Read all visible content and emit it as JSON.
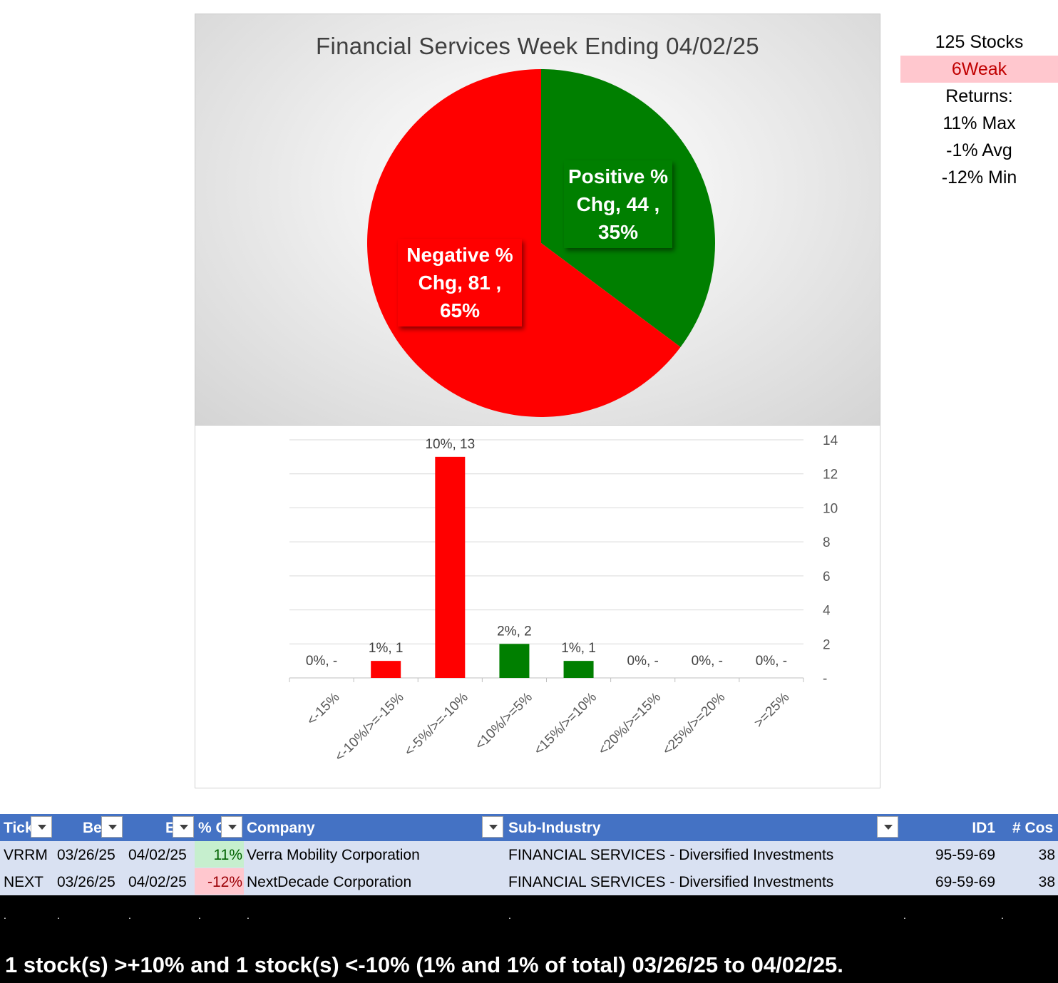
{
  "pie_chart": {
    "title": "Financial Services Week Ending 04/02/25",
    "slices": [
      {
        "label_line1": "Positive %",
        "label_line2": "Chg,  44 ,",
        "label_line3": "35%",
        "value": 44,
        "percent": 35,
        "color": "#007f00"
      },
      {
        "label_line1": "Negative %",
        "label_line2": "Chg,  81 ,",
        "label_line3": "65%",
        "value": 81,
        "percent": 65,
        "color": "#ff0000"
      }
    ]
  },
  "chart_data": [
    {
      "type": "pie",
      "title": "Financial Services Week Ending 04/02/25",
      "categories": [
        "Positive % Chg",
        "Negative % Chg"
      ],
      "values": [
        44,
        81
      ],
      "percents": [
        35,
        65
      ],
      "colors": [
        "#007f00",
        "#ff0000"
      ]
    },
    {
      "type": "bar",
      "categories": [
        "<-15%",
        "<-10%/>=-15%",
        "<-5%/>=-10%",
        "<10%/>=5%",
        "<15%/>=10%",
        "<20%/>=15%",
        "<25%/>=20%",
        ">=25%"
      ],
      "values": [
        0,
        1,
        13,
        2,
        1,
        0,
        0,
        0
      ],
      "data_labels": [
        "0%,  -",
        "1%,  1",
        "10%,  13",
        "2%,  2",
        "1%,  1",
        "0%,  -",
        "0%,  -",
        "0%,  -"
      ],
      "bar_colors": [
        "#ff0000",
        "#ff0000",
        "#ff0000",
        "#007f00",
        "#007f00",
        "#007f00",
        "#007f00",
        "#007f00"
      ],
      "y_ticks": [
        "-",
        "2",
        "4",
        "6",
        "8",
        "10",
        "12",
        "14"
      ],
      "ylim": [
        0,
        14
      ],
      "y_axis_side": "right",
      "grid": true
    }
  ],
  "side_stats": {
    "stocks": "125 Stocks",
    "weak": "6Weak",
    "returns_label": "Returns:",
    "max": "11% Max",
    "avg": "-1% Avg",
    "min": "-12% Min"
  },
  "table": {
    "headers": [
      "Tick",
      "Be",
      "E",
      "% C",
      "Company",
      "Sub-Industry",
      "ID1",
      "# Cos"
    ],
    "rows": [
      {
        "ticker": "VRRM",
        "begin": "03/26/25",
        "end": "04/02/25",
        "pct": "11%",
        "company": "Verra Mobility Corporation",
        "sub_industry": "FINANCIAL SERVICES - Diversified Investments",
        "id1": "95-59-69",
        "cos": "38"
      },
      {
        "ticker": "NEXT",
        "begin": "03/26/25",
        "end": "04/02/25",
        "pct": "-12%",
        "company": "NextDecade Corporation",
        "sub_industry": "FINANCIAL SERVICES - Diversified Investments",
        "id1": "69-59-69",
        "cos": "38"
      }
    ],
    "colors": {
      "header": "#4472c4",
      "row": "#d9e1f2",
      "positive_fill": "#c6efce",
      "negative_fill": "#ffc7ce"
    }
  },
  "footer": {
    "dot": ".",
    "summary": "1 stock(s) >+10% and 1 stock(s) <-10% (1% and 1% of total) 03/26/25 to 04/02/25."
  }
}
